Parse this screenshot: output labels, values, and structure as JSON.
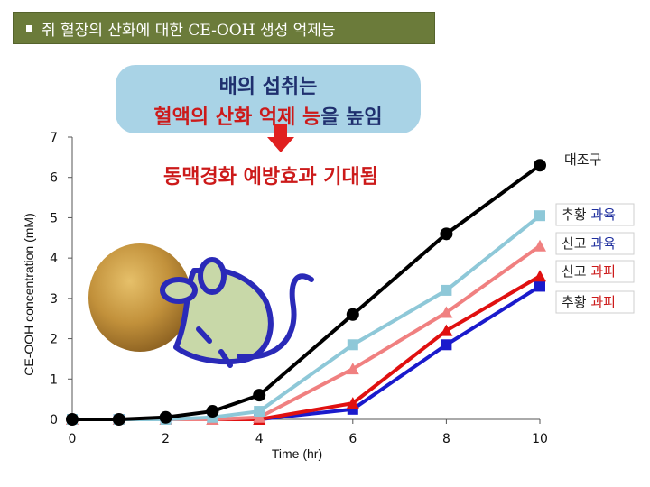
{
  "banner": {
    "title": "쥐 혈장의 산화에 대한 CE-OOH 생성 억제능"
  },
  "callout": {
    "line1": "배의 섭취는",
    "line2_red1": "혈액의 산화 억제 능",
    "line2_dark": "을 높임",
    "effect": "동맥경화 예방효과 기대됨"
  },
  "chart_data": {
    "type": "line",
    "xlabel": "Time (hr)",
    "ylabel": "CE-OOH concentration (mM)",
    "xlim": [
      0,
      10
    ],
    "ylim": [
      0,
      7
    ],
    "xticks": [
      "0",
      "2",
      "4",
      "6",
      "8",
      "10"
    ],
    "yticks": [
      "0",
      "1",
      "2",
      "3",
      "4",
      "5",
      "6",
      "7"
    ],
    "x_grid": false,
    "y_grid": false,
    "series": [
      {
        "name": "대조구",
        "color": "#000000",
        "marker": "circle",
        "x": [
          0,
          1,
          2,
          3,
          4,
          6,
          8,
          10
        ],
        "y": [
          0.0,
          0.0,
          0.05,
          0.2,
          0.6,
          2.6,
          4.6,
          6.3
        ]
      },
      {
        "name": "추황 과육",
        "name_parts": [
          "추황",
          "과육"
        ],
        "name_colors": [
          "#222222",
          "#1f2f9e"
        ],
        "color": "#8ec8d8",
        "marker": "square",
        "x": [
          0,
          1,
          2,
          3,
          4,
          6,
          8,
          10
        ],
        "y": [
          0.0,
          0.0,
          0.0,
          0.05,
          0.2,
          1.85,
          3.2,
          5.05
        ]
      },
      {
        "name": "신고 과육",
        "name_parts": [
          "신고",
          "과육"
        ],
        "name_colors": [
          "#222222",
          "#1f2f9e"
        ],
        "color": "#f08080",
        "marker": "triangle",
        "x": [
          0,
          1,
          2,
          3,
          4,
          6,
          8,
          10
        ],
        "y": [
          0.0,
          0.0,
          0.0,
          0.0,
          0.05,
          1.25,
          2.65,
          4.3
        ]
      },
      {
        "name": "신고 과피",
        "name_parts": [
          "신고",
          "과피"
        ],
        "name_colors": [
          "#222222",
          "#cc1a1a"
        ],
        "color": "#e01010",
        "marker": "triangle",
        "x": [
          0,
          1,
          2,
          3,
          4,
          6,
          8,
          10
        ],
        "y": [
          0.0,
          0.0,
          0.0,
          0.0,
          0.0,
          0.4,
          2.2,
          3.55
        ]
      },
      {
        "name": "추황 과피",
        "name_parts": [
          "추황",
          "과피"
        ],
        "name_colors": [
          "#222222",
          "#cc1a1a"
        ],
        "color": "#1a1acc",
        "marker": "square",
        "x": [
          0,
          1,
          2,
          3,
          4,
          6,
          8,
          10
        ],
        "y": [
          0.0,
          0.0,
          0.0,
          0.0,
          0.0,
          0.25,
          1.85,
          3.3
        ]
      }
    ]
  }
}
